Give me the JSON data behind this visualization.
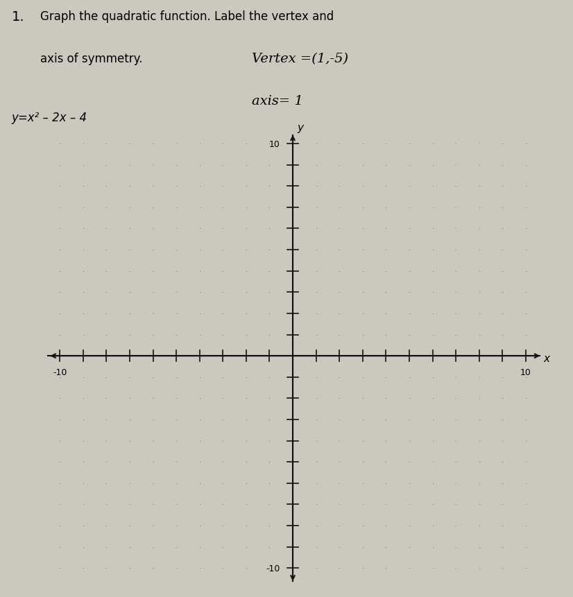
{
  "title_line1": "Graph the quadratic function. Label the vertex and",
  "title_line2": "axis of symmetry.",
  "handwritten_vertex": "Vertex =(1,-5)",
  "handwritten_axis": "axis= 1",
  "equation": "y=x² – 2x – 4",
  "xmin": -10,
  "xmax": 10,
  "ymin": -10,
  "ymax": 10,
  "dot_color": "#888880",
  "background_color": "#cdc8be",
  "axis_color": "#111111",
  "number_label_step": 10,
  "fig_width": 8.26,
  "fig_height": 8.62
}
